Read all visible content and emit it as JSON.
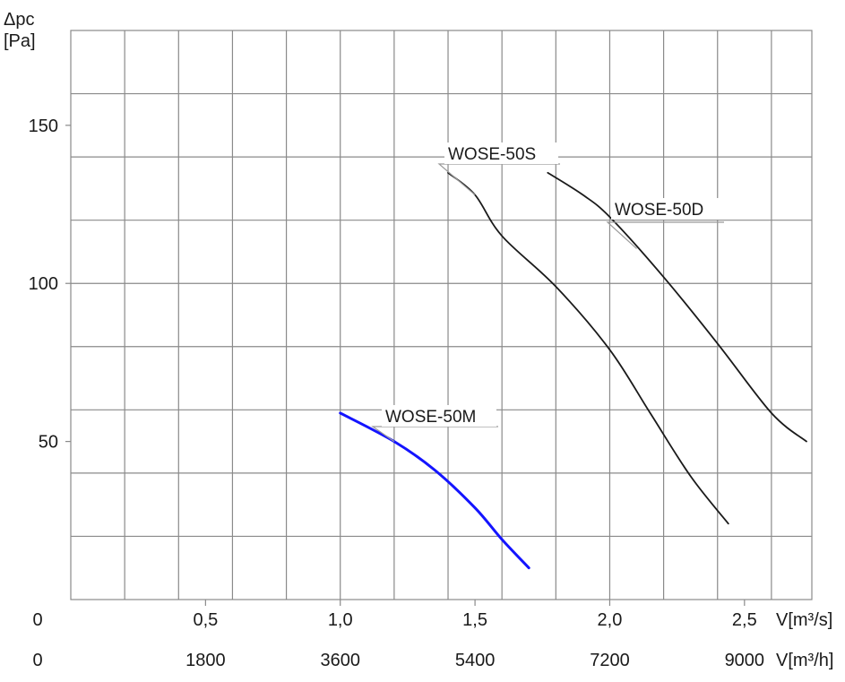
{
  "chart_data": {
    "type": "line",
    "title": "",
    "ylabel_line1": "Δpc",
    "ylabel_line2": "[Pa]",
    "xlabel_primary": "V[m³/s]",
    "xlabel_secondary": "V[m³/h]",
    "xlim": [
      0,
      2.75
    ],
    "ylim": [
      0,
      180
    ],
    "y_ticks": [
      {
        "value": 150,
        "label": "150"
      },
      {
        "value": 100,
        "label": "100"
      },
      {
        "value": 50,
        "label": "50"
      }
    ],
    "x_ticks_primary": [
      {
        "value": 0,
        "label": "0"
      },
      {
        "value": 0.5,
        "label": "0,5"
      },
      {
        "value": 1.0,
        "label": "1,0"
      },
      {
        "value": 1.5,
        "label": "1,5"
      },
      {
        "value": 2.0,
        "label": "2,0"
      },
      {
        "value": 2.5,
        "label": "2,5"
      }
    ],
    "x_ticks_secondary": [
      {
        "value": 0,
        "label": "0"
      },
      {
        "value": 0.5,
        "label": "1800"
      },
      {
        "value": 1.0,
        "label": "3600"
      },
      {
        "value": 1.5,
        "label": "5400"
      },
      {
        "value": 2.0,
        "label": "7200"
      },
      {
        "value": 2.5,
        "label": "9000"
      }
    ],
    "grid": true,
    "series": [
      {
        "name": "WOSE-50M",
        "color": "#1414ff",
        "points": [
          [
            1.0,
            59
          ],
          [
            1.2,
            50
          ],
          [
            1.35,
            41
          ],
          [
            1.5,
            29
          ],
          [
            1.6,
            19
          ],
          [
            1.7,
            10
          ]
        ]
      },
      {
        "name": "WOSE-50S",
        "color": "#1a1a1a",
        "points": [
          [
            1.4,
            135
          ],
          [
            1.5,
            128
          ],
          [
            1.6,
            115
          ],
          [
            1.8,
            99
          ],
          [
            2.0,
            79
          ],
          [
            2.15,
            59
          ],
          [
            2.3,
            39
          ],
          [
            2.44,
            24
          ]
        ]
      },
      {
        "name": "WOSE-50D",
        "color": "#1a1a1a",
        "points": [
          [
            1.77,
            135
          ],
          [
            1.9,
            128
          ],
          [
            2.0,
            121
          ],
          [
            2.2,
            102
          ],
          [
            2.4,
            81
          ],
          [
            2.6,
            59
          ],
          [
            2.73,
            50
          ]
        ]
      }
    ]
  }
}
